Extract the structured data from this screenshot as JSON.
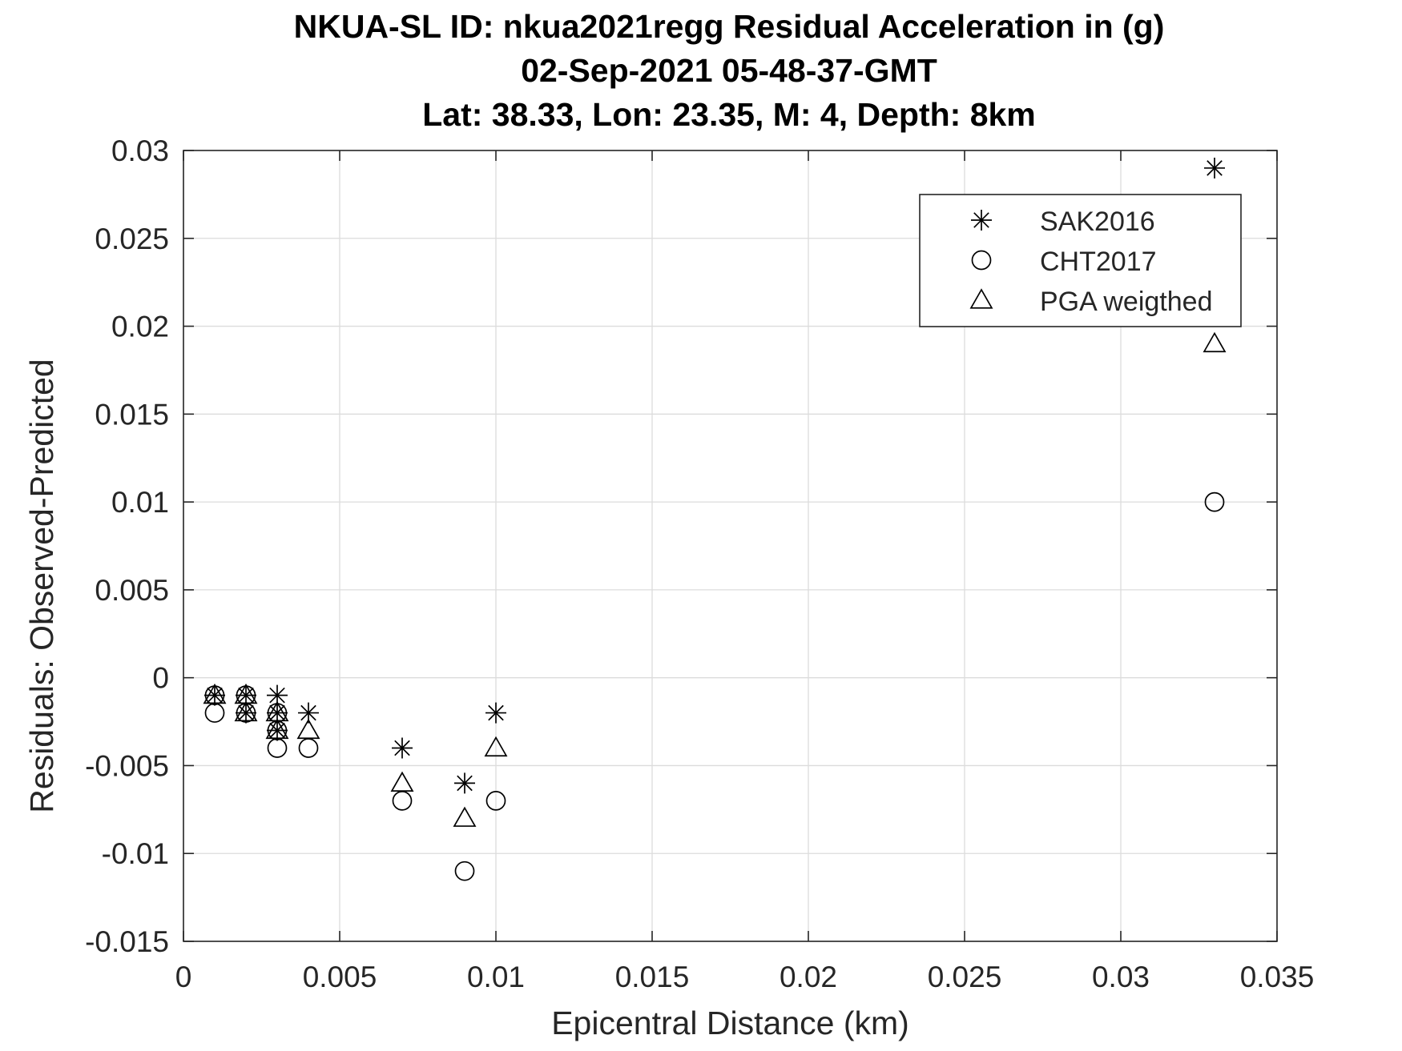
{
  "chart_data": {
    "type": "scatter",
    "title_lines": [
      "NKUA-SL ID: nkua2021regg Residual Acceleration in (g)",
      "02-Sep-2021 05-48-37-GMT",
      "Lat: 38.33, Lon: 23.35, M: 4, Depth: 8km"
    ],
    "xlabel": "Epicentral Distance (km)",
    "ylabel": "Residuals: Observed-Predicted",
    "xlim": [
      0,
      0.035
    ],
    "ylim": [
      -0.015,
      0.03
    ],
    "xticks": [
      0,
      0.005,
      0.01,
      0.015,
      0.02,
      0.025,
      0.03,
      0.035
    ],
    "xtick_labels": [
      "0",
      "0.005",
      "0.01",
      "0.015",
      "0.02",
      "0.025",
      "0.03",
      "0.035"
    ],
    "yticks": [
      -0.015,
      -0.01,
      -0.005,
      0,
      0.005,
      0.01,
      0.015,
      0.02,
      0.025,
      0.03
    ],
    "ytick_labels": [
      "-0.015",
      "-0.01",
      "-0.005",
      "0",
      "0.005",
      "0.01",
      "0.015",
      "0.02",
      "0.025",
      "0.03"
    ],
    "grid": true,
    "legend_position": "top-right",
    "colors": {
      "marker": "#000000",
      "grid": "#dcdcdc",
      "axes": "#262626"
    },
    "series": [
      {
        "name": "SAK2016",
        "marker": "asterisk",
        "points": [
          [
            0.001,
            -0.001
          ],
          [
            0.002,
            -0.001
          ],
          [
            0.002,
            -0.002
          ],
          [
            0.003,
            -0.001
          ],
          [
            0.003,
            -0.002
          ],
          [
            0.003,
            -0.003
          ],
          [
            0.004,
            -0.002
          ],
          [
            0.007,
            -0.004
          ],
          [
            0.009,
            -0.006
          ],
          [
            0.01,
            -0.002
          ],
          [
            0.033,
            0.029
          ]
        ]
      },
      {
        "name": "CHT2017",
        "marker": "circle",
        "points": [
          [
            0.001,
            -0.001
          ],
          [
            0.001,
            -0.002
          ],
          [
            0.002,
            -0.001
          ],
          [
            0.002,
            -0.002
          ],
          [
            0.003,
            -0.002
          ],
          [
            0.003,
            -0.003
          ],
          [
            0.003,
            -0.004
          ],
          [
            0.004,
            -0.004
          ],
          [
            0.007,
            -0.007
          ],
          [
            0.009,
            -0.011
          ],
          [
            0.01,
            -0.007
          ],
          [
            0.033,
            0.01
          ]
        ]
      },
      {
        "name": "PGA weigthed",
        "marker": "triangle",
        "points": [
          [
            0.001,
            -0.001
          ],
          [
            0.002,
            -0.001
          ],
          [
            0.002,
            -0.002
          ],
          [
            0.003,
            -0.002
          ],
          [
            0.003,
            -0.003
          ],
          [
            0.004,
            -0.003
          ],
          [
            0.007,
            -0.006
          ],
          [
            0.009,
            -0.008
          ],
          [
            0.01,
            -0.004
          ],
          [
            0.033,
            0.019
          ]
        ]
      }
    ]
  }
}
